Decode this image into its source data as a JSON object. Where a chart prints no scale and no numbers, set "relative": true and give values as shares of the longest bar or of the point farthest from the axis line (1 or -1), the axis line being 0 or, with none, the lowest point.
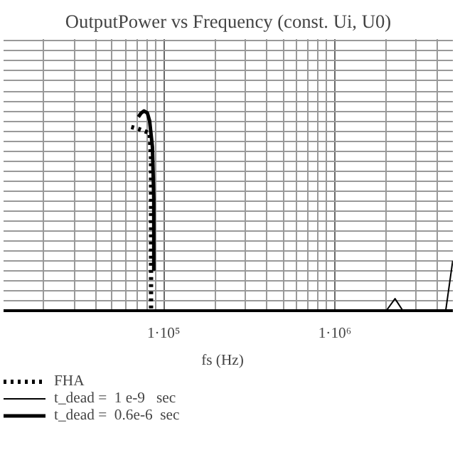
{
  "chart_data": {
    "type": "line",
    "title": "OutputPower vs Frequency (const. Ui, U0)",
    "xlabel": "fs    (Hz)",
    "relative": true,
    "log": "x",
    "xlim": [
      11600,
      4900000
    ],
    "xticks": [
      {
        "value": 100000,
        "label": "1·10⁵"
      },
      {
        "value": 1000000,
        "label": "1·10⁶"
      }
    ],
    "grid": true,
    "legend": "bottom left",
    "series": [
      {
        "name": "FHA",
        "color": "#000000",
        "line_style": "dotted",
        "x": [
          64700,
          71200,
          76800,
          82800,
          84400,
          84400,
          84400
        ],
        "values": [
          0.92,
          0.91,
          0.9,
          0.89,
          0.76,
          0.37,
          0
        ]
      },
      {
        "name": "t_dead =  1 e-9   sec",
        "color": "#000000",
        "line_style": "solid",
        "x": [
          2000000,
          2250000,
          2500000,
          3000000,
          4450000,
          4890000
        ],
        "values": [
          0,
          0.06,
          0,
          null,
          0,
          0.25
        ]
      },
      {
        "name": "t_dead =  0.6e-6  sec",
        "color": "#000000",
        "line_style": "solid",
        "x": [
          71200,
          73900,
          76800,
          80300,
          82800,
          86000,
          87600,
          87600
        ],
        "values": [
          0.97,
          0.99,
          1,
          0.99,
          0.95,
          0.82,
          0.56,
          0.2
        ]
      }
    ]
  }
}
